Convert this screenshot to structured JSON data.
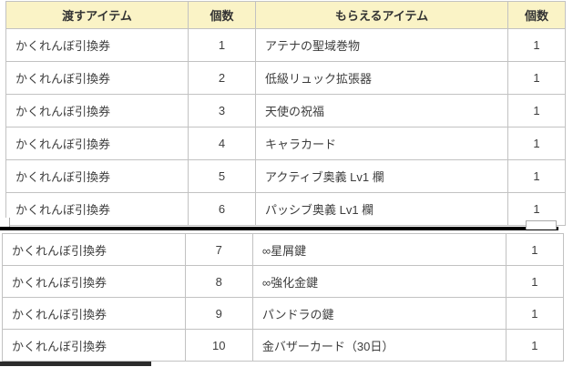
{
  "headers": {
    "give_item": "渡すアイテム",
    "give_qty": "個数",
    "receive_item": "もらえるアイテム",
    "receive_qty": "個数"
  },
  "rows_top": [
    {
      "give_item": "かくれんぼ引換券",
      "give_qty": "1",
      "receive_item": "アテナの聖域巻物",
      "receive_qty": "1"
    },
    {
      "give_item": "かくれんぼ引換券",
      "give_qty": "2",
      "receive_item": "低級リュック拡張器",
      "receive_qty": "1"
    },
    {
      "give_item": "かくれんぼ引換券",
      "give_qty": "3",
      "receive_item": "天使の祝福",
      "receive_qty": "1"
    },
    {
      "give_item": "かくれんぼ引換券",
      "give_qty": "4",
      "receive_item": "キャラカード",
      "receive_qty": "1"
    },
    {
      "give_item": "かくれんぼ引換券",
      "give_qty": "5",
      "receive_item": "アクティブ奥義 Lv1 欄",
      "receive_qty": "1"
    },
    {
      "give_item": "かくれんぼ引換券",
      "give_qty": "6",
      "receive_item": "パッシブ奥義 Lv1 欄",
      "receive_qty": "1"
    }
  ],
  "rows_bottom": [
    {
      "give_item": "かくれんぼ引換券",
      "give_qty": "7",
      "receive_item": "∞星屑鍵",
      "receive_qty": "1"
    },
    {
      "give_item": "かくれんぼ引換券",
      "give_qty": "8",
      "receive_item": "∞強化金鍵",
      "receive_qty": "1"
    },
    {
      "give_item": "かくれんぼ引換券",
      "give_qty": "9",
      "receive_item": "パンドラの鍵",
      "receive_qty": "1"
    },
    {
      "give_item": "かくれんぼ引換券",
      "give_qty": "10",
      "receive_item": "金バザーカード（30日）",
      "receive_qty": "1"
    }
  ],
  "colors": {
    "header_bg": "#faf3c6",
    "cell_border": "#c2c2c2",
    "outer_border": "#9f9f9f",
    "text": "#3d3d3d",
    "seam_line": "#000000",
    "bottom_bar": "#2b2b2b"
  }
}
